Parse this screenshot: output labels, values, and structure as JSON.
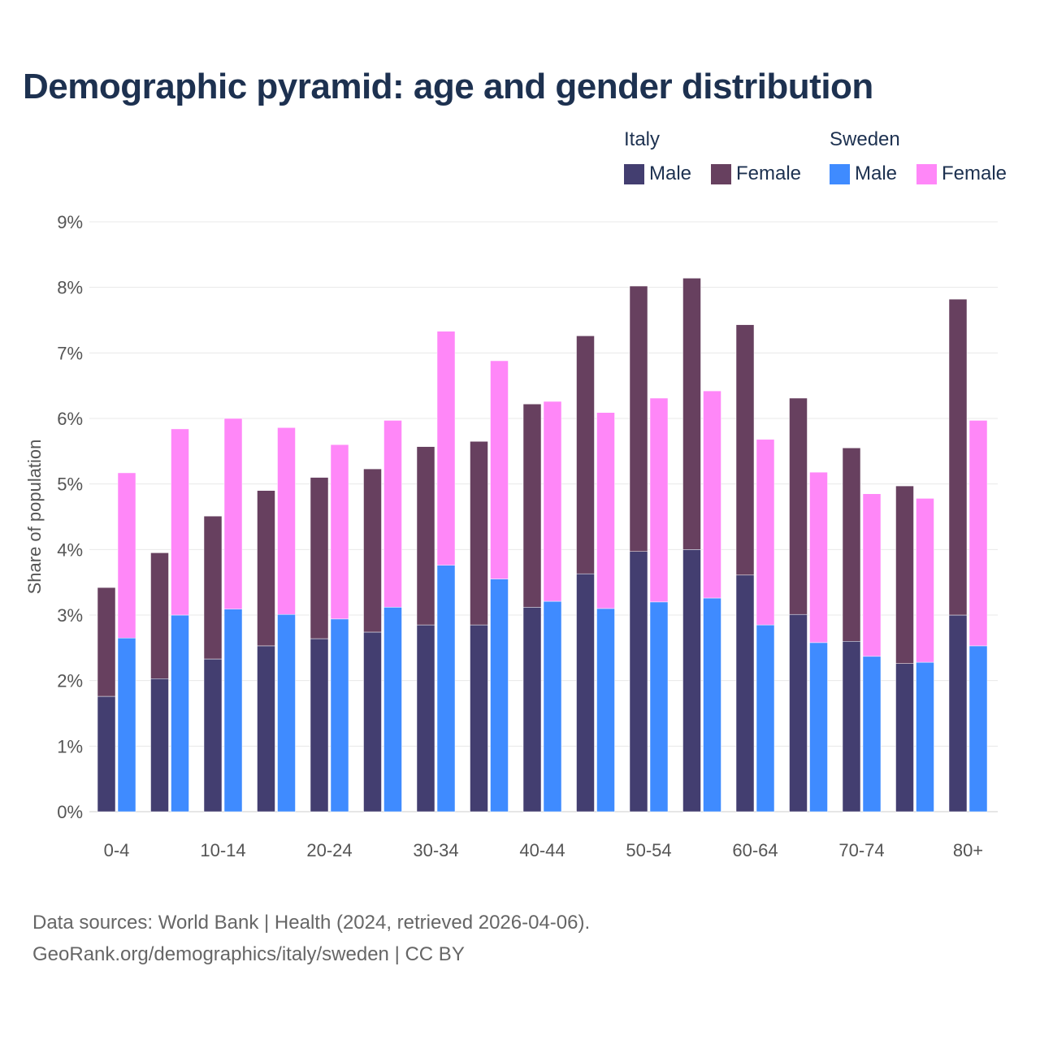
{
  "chart_data": {
    "type": "bar",
    "stacked": true,
    "title": "Demographic pyramid: age and gender distribution",
    "ylabel": "Share of population",
    "xlabel": "",
    "ylim": [
      0,
      9
    ],
    "yticks": [
      "0%",
      "1%",
      "2%",
      "3%",
      "4%",
      "5%",
      "6%",
      "7%",
      "8%",
      "9%"
    ],
    "grid": true,
    "legend_position": "top-right",
    "categories": [
      "0-4",
      "5-9",
      "10-14",
      "15-19",
      "20-24",
      "25-29",
      "30-34",
      "35-39",
      "40-44",
      "45-49",
      "50-54",
      "55-59",
      "60-64",
      "65-69",
      "70-74",
      "75-79",
      "80+"
    ],
    "x_tick_labels_shown": [
      "0-4",
      "10-14",
      "20-24",
      "30-34",
      "40-44",
      "50-54",
      "60-64",
      "70-74",
      "80+"
    ],
    "groups": [
      {
        "name": "Italy",
        "series": [
          {
            "name": "Male",
            "color": "#433e70",
            "values": [
              1.76,
              2.03,
              2.33,
              2.53,
              2.64,
              2.74,
              2.85,
              2.85,
              3.12,
              3.63,
              3.97,
              4.0,
              3.61,
              3.01,
              2.6,
              2.26,
              3.0
            ]
          },
          {
            "name": "Female",
            "color": "#67405f",
            "values": [
              1.66,
              1.92,
              2.18,
              2.37,
              2.46,
              2.49,
              2.72,
              2.8,
              3.1,
              3.63,
              4.05,
              4.14,
              3.82,
              3.3,
              2.95,
              2.71,
              4.82
            ]
          }
        ]
      },
      {
        "name": "Sweden",
        "series": [
          {
            "name": "Male",
            "color": "#3f8bff",
            "values": [
              2.65,
              3.0,
              3.09,
              3.01,
              2.94,
              3.12,
              3.76,
              3.55,
              3.21,
              3.1,
              3.2,
              3.26,
              2.85,
              2.58,
              2.37,
              2.28,
              2.53
            ]
          },
          {
            "name": "Female",
            "color": "#ff87f8",
            "values": [
              2.52,
              2.84,
              2.91,
              2.85,
              2.66,
              2.85,
              3.57,
              3.33,
              3.05,
              2.99,
              3.11,
              3.16,
              2.83,
              2.6,
              2.48,
              2.5,
              3.44
            ]
          }
        ]
      }
    ]
  },
  "source": {
    "line1": "Data sources: World Bank | Health (2024, retrieved 2026-04-06).",
    "line2": "GeoRank.org/demographics/italy/sweden | CC BY"
  }
}
